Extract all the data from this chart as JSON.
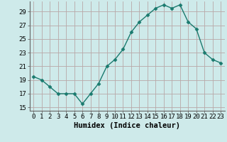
{
  "x": [
    0,
    1,
    2,
    3,
    4,
    5,
    6,
    7,
    8,
    9,
    10,
    11,
    12,
    13,
    14,
    15,
    16,
    17,
    18,
    19,
    20,
    21,
    22,
    23
  ],
  "y": [
    19.5,
    19.0,
    18.0,
    17.0,
    17.0,
    17.0,
    15.5,
    17.0,
    18.5,
    21.0,
    22.0,
    23.5,
    26.0,
    27.5,
    28.5,
    29.5,
    30.0,
    29.5,
    30.0,
    27.5,
    26.5,
    23.0,
    22.0,
    21.5
  ],
  "line_color": "#1a7a6e",
  "marker": "D",
  "marker_size": 2.5,
  "bg_color": "#ceeaea",
  "grid_color": "#b8a8a8",
  "xlabel": "Humidex (Indice chaleur)",
  "xlim": [
    -0.5,
    23.5
  ],
  "ylim": [
    14.5,
    30.5
  ],
  "yticks": [
    15,
    17,
    19,
    21,
    23,
    25,
    27,
    29
  ],
  "xticks": [
    0,
    1,
    2,
    3,
    4,
    5,
    6,
    7,
    8,
    9,
    10,
    11,
    12,
    13,
    14,
    15,
    16,
    17,
    18,
    19,
    20,
    21,
    22,
    23
  ],
  "tick_fontsize": 6.5,
  "label_fontsize": 7.5
}
